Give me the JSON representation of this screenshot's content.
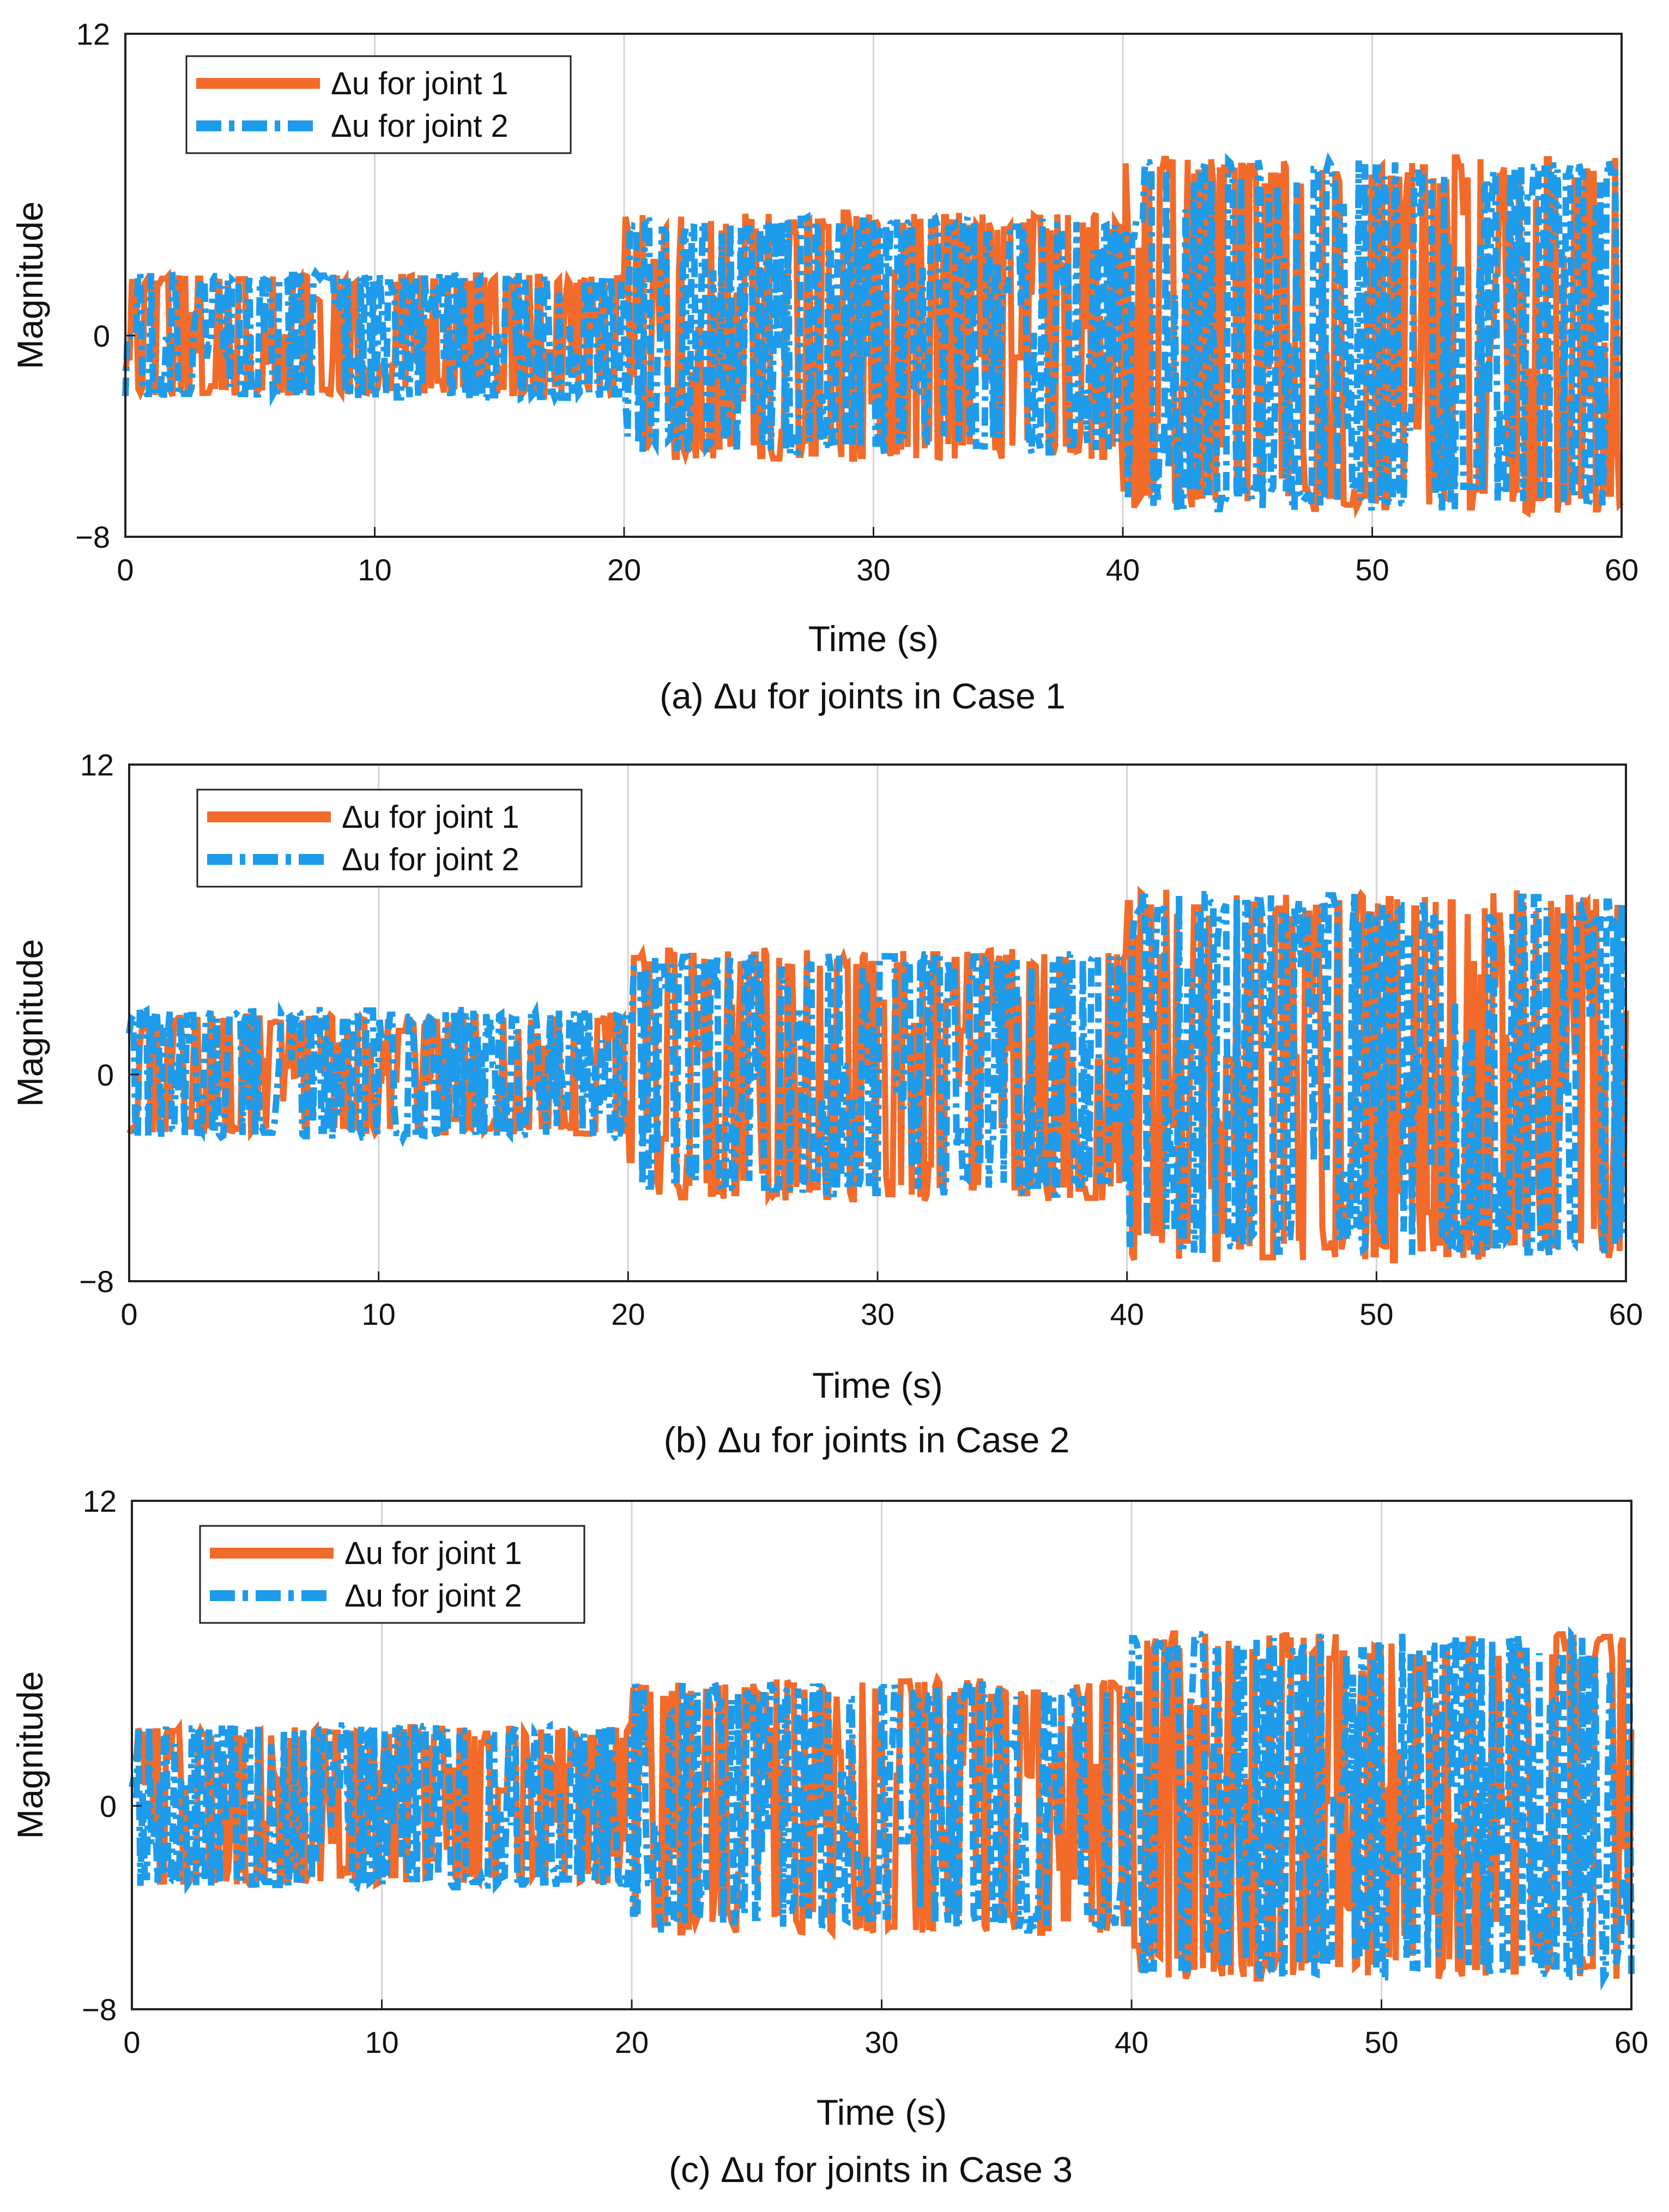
{
  "figure": {
    "panels_label": "Δu for joints"
  },
  "chart_data": [
    {
      "type": "line",
      "caption": "(a)  Δu for joints in Case 1",
      "xlabel": "Time (s)",
      "ylabel": "Magnitude",
      "xlim": [
        0,
        60
      ],
      "ylim": [
        -8,
        12
      ],
      "xticks": [
        "0",
        "10",
        "20",
        "30",
        "40",
        "50",
        "60"
      ],
      "yticks": [
        "12",
        "0",
        "-8"
      ],
      "ytick_values": [
        12,
        0,
        -8
      ],
      "grid": "vertical",
      "legend_position": "top-left",
      "segments": [
        {
          "t_start": 0,
          "t_end": 20,
          "amplitude": 2.5
        },
        {
          "t_start": 20,
          "t_end": 40,
          "amplitude": 4.9
        },
        {
          "t_start": 40,
          "t_end": 60,
          "amplitude": 7.2
        }
      ],
      "series": [
        {
          "name": "Δu for joint 1",
          "color": "#F26B2A",
          "style": "solid",
          "amplitude_by_segment": [
            2.4,
            4.9,
            7.1
          ]
        },
        {
          "name": "Δu for joint 2",
          "color": "#1E9BEA",
          "style": "dashdot",
          "amplitude_by_segment": [
            2.5,
            4.7,
            7.0
          ]
        }
      ],
      "legend": [
        "Δu for joint 1",
        "Δu for joint 2"
      ]
    },
    {
      "type": "line",
      "caption": "(b)  Δu for joints in Case 2",
      "xlabel": "Time (s)",
      "ylabel": "Magnitude",
      "xlim": [
        0,
        60
      ],
      "ylim": [
        -8,
        12
      ],
      "xticks": [
        "0",
        "10",
        "20",
        "30",
        "40",
        "50",
        "60"
      ],
      "yticks": [
        "12",
        "0",
        "-8"
      ],
      "ytick_values": [
        12,
        0,
        -8
      ],
      "grid": "vertical",
      "legend_position": "top-left",
      "segments": [
        {
          "t_start": 0,
          "t_end": 20,
          "amplitude": 2.5
        },
        {
          "t_start": 20,
          "t_end": 40,
          "amplitude": 4.9
        },
        {
          "t_start": 40,
          "t_end": 60,
          "amplitude": 7.2
        }
      ],
      "series": [
        {
          "name": "Δu for joint 1",
          "color": "#F26B2A",
          "style": "solid",
          "amplitude_by_segment": [
            2.3,
            4.9,
            7.2
          ]
        },
        {
          "name": "Δu for joint 2",
          "color": "#1E9BEA",
          "style": "dashdot",
          "amplitude_by_segment": [
            2.5,
            4.7,
            7.0
          ]
        }
      ],
      "legend": [
        "Δu for joint 1",
        "Δu for joint 2"
      ]
    },
    {
      "type": "line",
      "caption": "(c)  Δu for joints in Case 3",
      "xlabel": "Time (s)",
      "ylabel": "Magnitude",
      "xlim": [
        0,
        60
      ],
      "ylim": [
        -8,
        12
      ],
      "xticks": [
        "0",
        "10",
        "20",
        "30",
        "40",
        "50",
        "60"
      ],
      "yticks": [
        "12",
        "0",
        "-8"
      ],
      "ytick_values": [
        12,
        0,
        -8
      ],
      "grid": "vertical",
      "legend_position": "top-left",
      "segments": [
        {
          "t_start": 0,
          "t_end": 20,
          "amplitude": 3.3
        },
        {
          "t_start": 20,
          "t_end": 40,
          "amplitude": 5.0
        },
        {
          "t_start": 40,
          "t_end": 60,
          "amplitude": 6.8
        }
      ],
      "series": [
        {
          "name": "Δu for joint 1",
          "color": "#F26B2A",
          "style": "solid",
          "amplitude_by_segment": [
            3.1,
            5.0,
            6.8
          ]
        },
        {
          "name": "Δu for joint 2",
          "color": "#1E9BEA",
          "style": "dashdot",
          "amplitude_by_segment": [
            3.2,
            4.9,
            6.8
          ]
        }
      ],
      "legend": [
        "Δu for joint 1",
        "Δu for joint 2"
      ]
    }
  ]
}
